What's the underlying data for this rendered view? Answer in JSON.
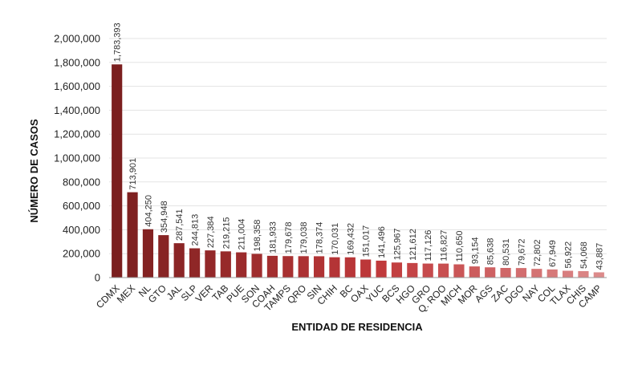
{
  "chart_data": {
    "type": "bar",
    "title": "",
    "xlabel": "ENTIDAD DE RESIDENCIA",
    "ylabel": "NÚMERO DE CASOS",
    "ylim": [
      0,
      2000000
    ],
    "yticks": [
      "0",
      "200,000",
      "400,000",
      "600,000",
      "800,000",
      "1,000,000",
      "1,200,000",
      "1,400,000",
      "1,600,000",
      "1,800,000",
      "2,000,000"
    ],
    "grid": "horizontal",
    "categories": [
      "CDMX",
      "MEX",
      "NL",
      "GTO",
      "JAL",
      "SLP",
      "VER",
      "TAB",
      "PUE",
      "SON",
      "COAH",
      "TAMPS",
      "QRO",
      "SIN",
      "CHIH",
      "BC",
      "OAX",
      "YUC",
      "BCS",
      "HGO",
      "GRO",
      "Q. ROO",
      "MICH",
      "MOR",
      "AGS",
      "ZAC",
      "DGO",
      "NAY",
      "COL",
      "TLAX",
      "CHIS",
      "CAMP"
    ],
    "values": [
      1783393,
      713901,
      404250,
      354948,
      287541,
      244813,
      227384,
      219215,
      211004,
      198358,
      181933,
      179678,
      179038,
      178374,
      170031,
      169432,
      151017,
      141496,
      125967,
      121612,
      117126,
      116827,
      110650,
      93154,
      85638,
      80531,
      79672,
      72802,
      67949,
      56922,
      54068,
      43887
    ],
    "value_labels": [
      "1,783,393",
      "713,901",
      "404,250",
      "354,948",
      "287,541",
      "244,813",
      "227,384",
      "219,215",
      "211,004",
      "198,358",
      "181,933",
      "179,678",
      "179,038",
      "178,374",
      "170,031",
      "169,432",
      "151,017",
      "141,496",
      "125,967",
      "121,612",
      "117,126",
      "116,827",
      "110,650",
      "93,154",
      "85,638",
      "80,531",
      "79,672",
      "72,802",
      "67,949",
      "56,922",
      "54,068",
      "43,887"
    ],
    "colors": {
      "dark": "#7b1f1f",
      "mid": "#c0393b",
      "light": "#dc8a8a",
      "grid": "#e3e3e3",
      "axis": "#999999"
    }
  }
}
